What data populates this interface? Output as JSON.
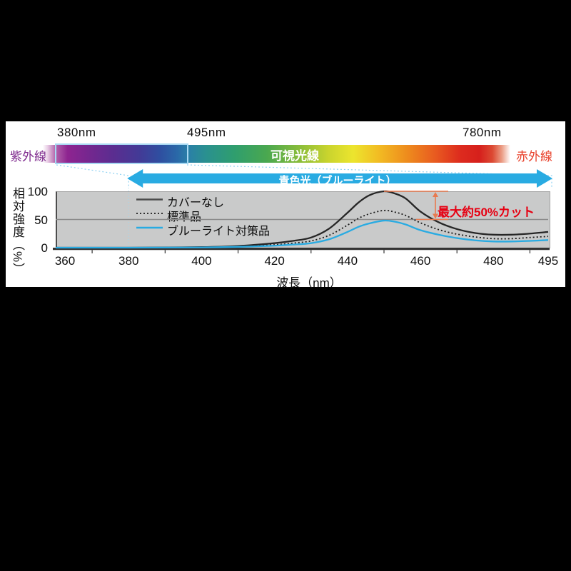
{
  "page": {
    "background": "#000000",
    "panel_background": "#ffffff"
  },
  "spectrum_bar": {
    "label_380": "380nm",
    "label_495": "495nm",
    "label_780": "780nm",
    "uv_label": "紫外線",
    "visible_label": "可視光線",
    "ir_label": "赤外線",
    "uv_text_color": "#7f2a8e",
    "ir_text_color": "#e8402a",
    "visible_text_color": "#ffffff",
    "highlight_border_color": "#a8d9f3"
  },
  "blue_light_arrow": {
    "label": "青色光（ブルーライト）",
    "fill": "#29abe2",
    "text_color": "#ffffff"
  },
  "cut_annotation": {
    "label": "最大約50%カット",
    "text_color": "#e60012",
    "line_color": "#e87a50",
    "from_percent": 100,
    "to_percent": 50,
    "at_nm": 450
  },
  "chart_data": {
    "type": "line",
    "title": "",
    "xlabel": "波長（nm）",
    "ylabel": "相対強度（%）",
    "xlim": [
      360,
      495
    ],
    "ylim": [
      0,
      100
    ],
    "x_ticks": [
      360,
      380,
      400,
      420,
      440,
      460,
      480,
      495
    ],
    "x_minor_ticks": [
      370,
      390,
      410,
      430,
      450,
      470,
      490
    ],
    "y_ticks": [
      0,
      50,
      100
    ],
    "grid_y": [
      50
    ],
    "plot_background": "#c9caca",
    "legend_position": "inside-top-left",
    "highlight_band_nm": [
      380,
      495
    ],
    "x": [
      360,
      380,
      400,
      410,
      420,
      425,
      430,
      435,
      440,
      443,
      446,
      450,
      453,
      456,
      460,
      465,
      470,
      475,
      480,
      485,
      490,
      495
    ],
    "series": [
      {
        "name": "カバーなし",
        "style": "solid",
        "color": "#262626",
        "values": [
          0,
          0,
          1,
          3,
          8,
          12,
          18,
          34,
          62,
          80,
          93,
          100,
          96,
          87,
          64,
          45,
          33,
          26,
          23,
          23,
          25,
          28
        ]
      },
      {
        "name": "標準品",
        "style": "dotted",
        "color": "#1a1a1a",
        "values": [
          0,
          0,
          0.5,
          2,
          5,
          8,
          12,
          22,
          40,
          52,
          60,
          66,
          63,
          57,
          44,
          32,
          24,
          19,
          16,
          16,
          18,
          20
        ]
      },
      {
        "name": "ブルーライト対策品",
        "style": "solid",
        "color": "#29abe2",
        "values": [
          0,
          0,
          0.5,
          1.5,
          3.5,
          5.5,
          8,
          15,
          28,
          37,
          43,
          48,
          46,
          41,
          31,
          23,
          17,
          13,
          11,
          11,
          12,
          13.5
        ]
      }
    ]
  }
}
